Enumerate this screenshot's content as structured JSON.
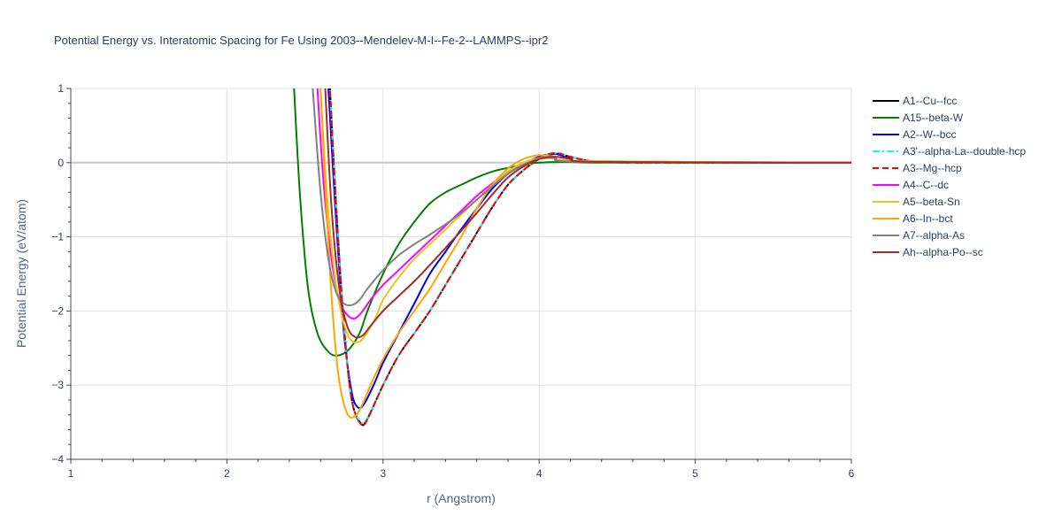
{
  "chart_data": {
    "type": "line",
    "title": "Potential Energy vs. Interatomic Spacing for Fe Using 2003--Mendelev-M-I--Fe-2--LAMMPS--ipr2",
    "xlabel": "r (Angstrom)",
    "ylabel": "Potential Energy (eV/atom)",
    "xlim": [
      1,
      6
    ],
    "ylim": [
      -4,
      1
    ],
    "xticks": [
      1,
      2,
      3,
      4,
      5,
      6
    ],
    "yticks": [
      -4,
      -3,
      -2,
      -1,
      0,
      1
    ],
    "grid": true,
    "legend_position": "right",
    "series": [
      {
        "name": "A1--Cu--fcc",
        "color": "#000000",
        "dash": "solid",
        "x": [
          2.66,
          2.7,
          2.75,
          2.8,
          2.86,
          2.9,
          3.0,
          3.1,
          3.2,
          3.3,
          3.4,
          3.5,
          3.6,
          3.7,
          3.8,
          3.9,
          4.0,
          4.1,
          4.2,
          4.3,
          4.4,
          4.6,
          5.0,
          6.0
        ],
        "y": [
          1.0,
          -0.6,
          -2.2,
          -3.2,
          -3.52,
          -3.45,
          -3.0,
          -2.6,
          -2.3,
          -2.0,
          -1.65,
          -1.3,
          -0.95,
          -0.6,
          -0.3,
          -0.1,
          0.05,
          0.12,
          0.08,
          0.03,
          0.01,
          0.0,
          0.0,
          0.0
        ]
      },
      {
        "name": "A15--beta-W",
        "color": "#008000",
        "dash": "solid",
        "x": [
          2.43,
          2.47,
          2.52,
          2.58,
          2.65,
          2.71,
          2.78,
          2.85,
          2.9,
          3.0,
          3.1,
          3.2,
          3.3,
          3.4,
          3.5,
          3.6,
          3.7,
          3.8,
          3.9,
          4.0,
          4.2,
          4.5,
          6.0
        ],
        "y": [
          1.0,
          -0.5,
          -1.7,
          -2.3,
          -2.55,
          -2.6,
          -2.52,
          -2.3,
          -2.0,
          -1.5,
          -1.1,
          -0.8,
          -0.55,
          -0.4,
          -0.3,
          -0.2,
          -0.12,
          -0.07,
          -0.03,
          0.0,
          0.01,
          0.0,
          0.0
        ]
      },
      {
        "name": "A2--W--bcc",
        "color": "#0000ff",
        "dash": "solid",
        "x": [
          2.65,
          2.7,
          2.75,
          2.8,
          2.84,
          2.88,
          2.95,
          3.0,
          3.1,
          3.2,
          3.3,
          3.4,
          3.5,
          3.6,
          3.7,
          3.8,
          3.9,
          4.0,
          4.1,
          4.2,
          4.4,
          6.0
        ],
        "y": [
          1.0,
          -0.8,
          -2.3,
          -3.1,
          -3.3,
          -3.25,
          -2.95,
          -2.7,
          -2.3,
          -1.9,
          -1.5,
          -1.2,
          -0.9,
          -0.62,
          -0.35,
          -0.15,
          -0.02,
          0.08,
          0.12,
          0.06,
          0.01,
          0.0
        ]
      },
      {
        "name": "A3'--alpha-La--double-hcp",
        "color": "#00ffff",
        "dash": "dashdot",
        "x": [
          2.66,
          2.7,
          2.75,
          2.8,
          2.86,
          2.9,
          3.0,
          3.1,
          3.2,
          3.3,
          3.4,
          3.5,
          3.6,
          3.7,
          3.8,
          3.9,
          4.0,
          4.1,
          4.2,
          4.3,
          4.4,
          4.6,
          5.0,
          6.0
        ],
        "y": [
          1.0,
          -0.6,
          -2.2,
          -3.2,
          -3.5,
          -3.44,
          -3.0,
          -2.6,
          -2.3,
          -2.0,
          -1.65,
          -1.3,
          -0.95,
          -0.6,
          -0.3,
          -0.1,
          0.06,
          0.13,
          0.08,
          0.03,
          0.01,
          0.0,
          0.0,
          0.0
        ]
      },
      {
        "name": "A3--Mg--hcp",
        "color": "#ff0000",
        "dash": "dash",
        "x": [
          2.66,
          2.7,
          2.75,
          2.8,
          2.86,
          2.9,
          3.0,
          3.1,
          3.2,
          3.3,
          3.4,
          3.5,
          3.6,
          3.7,
          3.8,
          3.9,
          4.0,
          4.1,
          4.2,
          4.3,
          4.4,
          4.6,
          5.0,
          6.0
        ],
        "y": [
          1.0,
          -0.6,
          -2.2,
          -3.2,
          -3.53,
          -3.46,
          -3.0,
          -2.6,
          -2.3,
          -2.0,
          -1.65,
          -1.3,
          -0.95,
          -0.6,
          -0.3,
          -0.1,
          0.06,
          0.13,
          0.08,
          0.03,
          0.01,
          0.0,
          0.0,
          0.0
        ]
      },
      {
        "name": "A4--C--dc",
        "color": "#ff00ff",
        "dash": "solid",
        "x": [
          2.58,
          2.62,
          2.67,
          2.72,
          2.77,
          2.82,
          2.87,
          2.92,
          3.0,
          3.1,
          3.2,
          3.3,
          3.4,
          3.5,
          3.6,
          3.7,
          3.8,
          3.9,
          4.0,
          4.1,
          4.3,
          6.0
        ],
        "y": [
          1.0,
          -0.3,
          -1.3,
          -1.85,
          -2.05,
          -2.1,
          -2.0,
          -1.85,
          -1.65,
          -1.45,
          -1.25,
          -1.05,
          -0.85,
          -0.65,
          -0.45,
          -0.28,
          -0.13,
          -0.02,
          0.06,
          0.08,
          0.02,
          0.0
        ]
      },
      {
        "name": "A5--beta-Sn",
        "color": "#e6c619",
        "dash": "solid",
        "x": [
          2.6,
          2.64,
          2.69,
          2.74,
          2.79,
          2.84,
          2.88,
          2.95,
          3.0,
          3.1,
          3.2,
          3.3,
          3.4,
          3.5,
          3.6,
          3.7,
          3.8,
          3.9,
          4.0,
          4.1,
          4.3,
          6.0
        ],
        "y": [
          1.0,
          -0.4,
          -1.5,
          -2.1,
          -2.38,
          -2.42,
          -2.35,
          -2.1,
          -1.85,
          -1.55,
          -1.3,
          -1.1,
          -0.9,
          -0.7,
          -0.5,
          -0.3,
          -0.12,
          0.0,
          0.06,
          0.07,
          0.02,
          0.0
        ]
      },
      {
        "name": "A6--In--bct",
        "color": "#ffa500",
        "dash": "solid",
        "x": [
          2.6,
          2.64,
          2.68,
          2.72,
          2.77,
          2.82,
          2.87,
          2.92,
          3.0,
          3.1,
          3.2,
          3.3,
          3.4,
          3.5,
          3.6,
          3.7,
          3.8,
          3.9,
          4.0,
          4.1,
          4.3,
          6.0
        ],
        "y": [
          1.0,
          -0.7,
          -2.1,
          -2.95,
          -3.38,
          -3.42,
          -3.25,
          -3.0,
          -2.65,
          -2.3,
          -2.0,
          -1.7,
          -1.35,
          -1.0,
          -0.62,
          -0.3,
          -0.08,
          0.05,
          0.1,
          0.08,
          0.02,
          0.0
        ]
      },
      {
        "name": "A7--alpha-As",
        "color": "#808080",
        "dash": "solid",
        "x": [
          2.55,
          2.6,
          2.65,
          2.7,
          2.75,
          2.8,
          2.85,
          2.9,
          3.0,
          3.1,
          3.2,
          3.3,
          3.4,
          3.5,
          3.6,
          3.7,
          3.8,
          3.9,
          4.0,
          4.1,
          4.3,
          6.0
        ],
        "y": [
          1.0,
          -0.4,
          -1.3,
          -1.75,
          -1.9,
          -1.92,
          -1.85,
          -1.7,
          -1.45,
          -1.25,
          -1.1,
          -0.97,
          -0.83,
          -0.68,
          -0.5,
          -0.32,
          -0.15,
          -0.03,
          0.05,
          0.06,
          0.01,
          0.0
        ]
      },
      {
        "name": "Ah--alpha-Po--sc",
        "color": "#a52a2a",
        "dash": "solid",
        "x": [
          2.63,
          2.67,
          2.72,
          2.77,
          2.82,
          2.87,
          2.92,
          3.0,
          3.1,
          3.2,
          3.3,
          3.4,
          3.5,
          3.6,
          3.7,
          3.8,
          3.9,
          4.0,
          4.1,
          4.2,
          4.4,
          6.0
        ],
        "y": [
          1.0,
          -0.6,
          -1.7,
          -2.2,
          -2.35,
          -2.33,
          -2.2,
          -2.0,
          -1.8,
          -1.6,
          -1.38,
          -1.15,
          -0.92,
          -0.68,
          -0.43,
          -0.2,
          -0.05,
          0.05,
          0.08,
          0.05,
          0.01,
          0.0
        ]
      }
    ]
  }
}
